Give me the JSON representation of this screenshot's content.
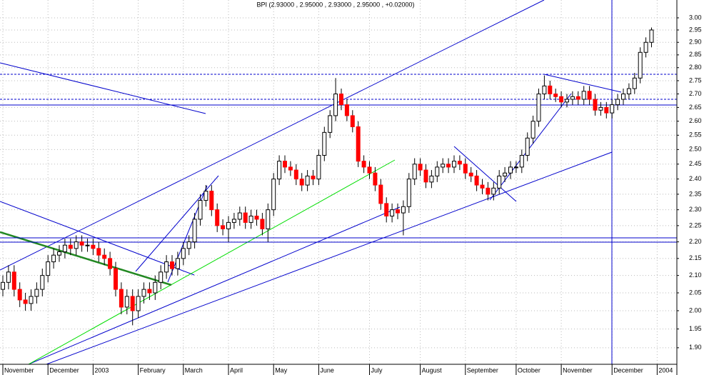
{
  "chart_data": {
    "type": "candlestick",
    "title": "BPI (2.93000 , 2.95000 , 2.93000 , 2.95000 , +0.02000)",
    "log_scale": true,
    "grid": true,
    "up_color": "#ffffff",
    "down_color": "#ff0000",
    "edge_color": "#000000",
    "ylim": [
      1.857,
      3.075
    ],
    "yticks": [
      {
        "value": 1.9,
        "label": "1.90"
      },
      {
        "value": 1.95,
        "label": "1.95"
      },
      {
        "value": 2,
        "label": "2.00"
      },
      {
        "value": 2.05,
        "label": "2.05"
      },
      {
        "value": 2.1,
        "label": "2.10"
      },
      {
        "value": 2.15,
        "label": "2.15"
      },
      {
        "value": 2.2,
        "label": "2.20"
      },
      {
        "value": 2.25,
        "label": "2.25"
      },
      {
        "value": 2.3,
        "label": "2.30"
      },
      {
        "value": 2.35,
        "label": "2.35"
      },
      {
        "value": 2.4,
        "label": "2.40"
      },
      {
        "value": 2.45,
        "label": "2.45"
      },
      {
        "value": 2.5,
        "label": "2.50"
      },
      {
        "value": 2.55,
        "label": "2.55"
      },
      {
        "value": 2.6,
        "label": "2.60"
      },
      {
        "value": 2.65,
        "label": "2.65"
      },
      {
        "value": 2.7,
        "label": "2.70"
      },
      {
        "value": 2.75,
        "label": "2.75"
      },
      {
        "value": 2.8,
        "label": "2.80"
      },
      {
        "value": 2.85,
        "label": "2.85"
      },
      {
        "value": 2.9,
        "label": "2.90"
      },
      {
        "value": 2.95,
        "label": "2.95"
      },
      {
        "value": 3,
        "label": "3.00"
      }
    ],
    "categories": [
      "November",
      null,
      null,
      null,
      null,
      null,
      null,
      null,
      "December",
      null,
      null,
      null,
      null,
      null,
      null,
      null,
      "2003",
      null,
      null,
      null,
      null,
      null,
      null,
      null,
      "February",
      null,
      null,
      null,
      null,
      null,
      null,
      null,
      "March",
      null,
      null,
      null,
      null,
      null,
      null,
      null,
      "April",
      null,
      null,
      null,
      null,
      null,
      null,
      null,
      "May",
      null,
      null,
      null,
      null,
      null,
      null,
      null,
      "June",
      null,
      null,
      null,
      null,
      null,
      null,
      null,
      null,
      "July",
      null,
      null,
      null,
      null,
      null,
      null,
      null,
      null,
      "August",
      null,
      null,
      null,
      null,
      null,
      null,
      null,
      "September",
      null,
      null,
      null,
      null,
      null,
      null,
      null,
      null,
      "October",
      null,
      null,
      null,
      null,
      null,
      null,
      null,
      "November",
      null,
      null,
      null,
      null,
      null,
      null,
      null,
      null,
      "December",
      null,
      null,
      null,
      null,
      null,
      null,
      null,
      "2004"
    ],
    "open": [
      2.06,
      2.08,
      2.11,
      2.06,
      2.03,
      2.02,
      2.04,
      2.06,
      2.1,
      2.14,
      2.16,
      2.17,
      2.19,
      2.18,
      2.2,
      2.19,
      2.19,
      2.18,
      2.16,
      2.15,
      2.12,
      2.06,
      2.01,
      2.04,
      2.0,
      2.04,
      2.06,
      2.05,
      2.08,
      2.11,
      2.14,
      2.12,
      2.15,
      2.18,
      2.2,
      2.27,
      2.33,
      2.36,
      2.3,
      2.25,
      2.24,
      2.26,
      2.27,
      2.29,
      2.26,
      2.28,
      2.27,
      2.24,
      2.3,
      2.4,
      2.46,
      2.44,
      2.43,
      2.4,
      2.38,
      2.41,
      2.4,
      2.48,
      2.56,
      2.62,
      2.7,
      2.66,
      2.62,
      2.58,
      2.46,
      2.44,
      2.42,
      2.38,
      2.32,
      2.28,
      2.3,
      2.29,
      2.31,
      2.4,
      2.45,
      2.43,
      2.39,
      2.41,
      2.44,
      2.45,
      2.44,
      2.46,
      2.45,
      2.42,
      2.41,
      2.38,
      2.37,
      2.35,
      2.37,
      2.41,
      2.42,
      2.44,
      2.44,
      2.48,
      2.54,
      2.6,
      2.7,
      2.73,
      2.7,
      2.69,
      2.67,
      2.68,
      2.69,
      2.68,
      2.71,
      2.68,
      2.64,
      2.65,
      2.63,
      2.66,
      2.68,
      2.7,
      2.72,
      2.76,
      2.86,
      2.9,
      null
    ],
    "high": [
      2.1,
      2.13,
      2.13,
      2.08,
      2.05,
      2.06,
      2.08,
      2.12,
      2.16,
      2.18,
      2.19,
      2.21,
      2.21,
      2.22,
      2.22,
      2.21,
      2.21,
      2.2,
      2.18,
      2.17,
      2.14,
      2.08,
      2.06,
      2.06,
      2.06,
      2.08,
      2.08,
      2.1,
      2.13,
      2.16,
      2.16,
      2.17,
      2.2,
      2.22,
      2.29,
      2.35,
      2.38,
      2.38,
      2.32,
      2.27,
      2.28,
      2.29,
      2.31,
      2.31,
      2.3,
      2.3,
      2.29,
      2.32,
      2.42,
      2.48,
      2.48,
      2.46,
      2.45,
      2.42,
      2.43,
      2.43,
      2.5,
      2.58,
      2.64,
      2.76,
      2.72,
      2.68,
      2.64,
      2.6,
      2.48,
      2.46,
      2.44,
      2.4,
      2.34,
      2.32,
      2.32,
      2.33,
      2.42,
      2.47,
      2.47,
      2.45,
      2.43,
      2.46,
      2.47,
      2.47,
      2.48,
      2.48,
      2.47,
      2.44,
      2.43,
      2.4,
      2.39,
      2.39,
      2.43,
      2.44,
      2.46,
      2.46,
      2.5,
      2.56,
      2.62,
      2.72,
      2.77,
      2.75,
      2.72,
      2.71,
      2.7,
      2.71,
      2.71,
      2.73,
      2.73,
      2.7,
      2.67,
      2.67,
      2.68,
      2.7,
      2.72,
      2.74,
      2.78,
      2.88,
      2.92,
      2.96,
      null
    ],
    "low": [
      2.04,
      2.06,
      2.04,
      2.01,
      2.0,
      2.0,
      2.02,
      2.04,
      2.08,
      2.12,
      2.14,
      2.15,
      2.16,
      2.16,
      2.17,
      2.17,
      2.16,
      2.14,
      2.13,
      2.1,
      2.04,
      1.99,
      1.99,
      1.96,
      1.98,
      2.02,
      2.03,
      2.03,
      2.06,
      2.09,
      2.1,
      2.1,
      2.13,
      2.16,
      2.18,
      2.25,
      2.31,
      2.28,
      2.23,
      2.22,
      2.2,
      2.24,
      2.25,
      2.24,
      2.24,
      2.25,
      2.22,
      2.2,
      2.28,
      2.38,
      2.42,
      2.41,
      2.38,
      2.36,
      2.36,
      2.38,
      2.38,
      2.46,
      2.54,
      2.6,
      2.64,
      2.6,
      2.56,
      2.44,
      2.42,
      2.4,
      2.36,
      2.3,
      2.26,
      2.26,
      2.27,
      2.22,
      2.29,
      2.38,
      2.41,
      2.37,
      2.37,
      2.39,
      2.42,
      2.42,
      2.42,
      2.43,
      2.4,
      2.39,
      2.36,
      2.35,
      2.33,
      2.33,
      2.35,
      2.39,
      2.4,
      2.42,
      2.42,
      2.46,
      2.52,
      2.58,
      2.68,
      2.68,
      2.67,
      2.65,
      2.65,
      2.66,
      2.66,
      2.66,
      2.66,
      2.62,
      2.62,
      2.61,
      2.61,
      2.64,
      2.66,
      2.68,
      2.7,
      2.74,
      2.84,
      2.88,
      null
    ],
    "close": [
      2.08,
      2.11,
      2.06,
      2.03,
      2.02,
      2.04,
      2.06,
      2.1,
      2.14,
      2.16,
      2.17,
      2.19,
      2.18,
      2.2,
      2.19,
      2.19,
      2.18,
      2.16,
      2.15,
      2.12,
      2.06,
      2.01,
      2.04,
      2.0,
      2.04,
      2.06,
      2.05,
      2.08,
      2.11,
      2.14,
      2.12,
      2.15,
      2.18,
      2.2,
      2.27,
      2.33,
      2.36,
      2.3,
      2.25,
      2.24,
      2.26,
      2.27,
      2.29,
      2.26,
      2.28,
      2.27,
      2.24,
      2.3,
      2.4,
      2.46,
      2.44,
      2.43,
      2.4,
      2.38,
      2.41,
      2.4,
      2.48,
      2.56,
      2.62,
      2.7,
      2.66,
      2.62,
      2.58,
      2.46,
      2.44,
      2.42,
      2.38,
      2.32,
      2.28,
      2.3,
      2.29,
      2.31,
      2.4,
      2.45,
      2.43,
      2.39,
      2.41,
      2.44,
      2.45,
      2.44,
      2.46,
      2.45,
      2.42,
      2.41,
      2.38,
      2.37,
      2.35,
      2.37,
      2.41,
      2.42,
      2.44,
      2.44,
      2.48,
      2.54,
      2.6,
      2.7,
      2.73,
      2.7,
      2.69,
      2.67,
      2.68,
      2.69,
      2.68,
      2.71,
      2.68,
      2.64,
      2.65,
      2.63,
      2.66,
      2.68,
      2.7,
      2.72,
      2.76,
      2.86,
      2.9,
      2.95,
      null
    ]
  }
}
